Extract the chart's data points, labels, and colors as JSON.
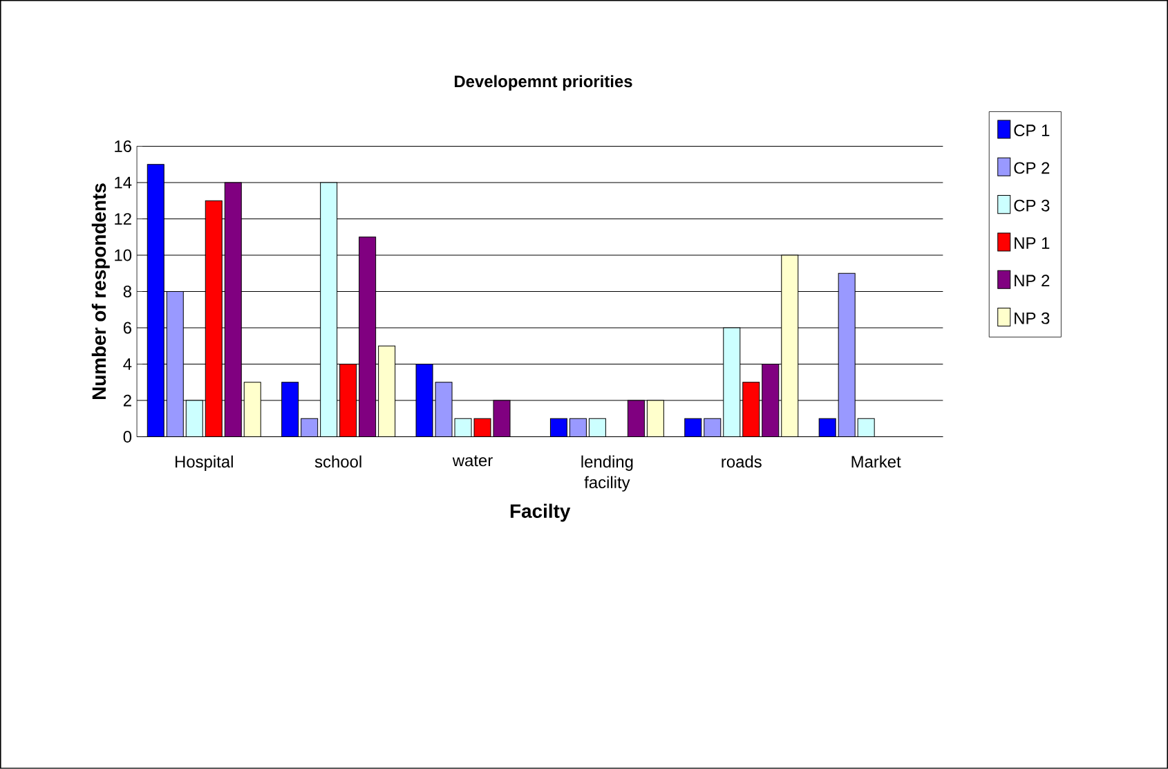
{
  "chart_data": {
    "type": "bar",
    "title": "Developemnt priorities",
    "xlabel": "Facilty",
    "ylabel": "Number of respondents",
    "categories": [
      "Hospital",
      "school",
      "water",
      "lending facility",
      "roads",
      "Market"
    ],
    "series": [
      {
        "name": "CP 1",
        "color": "#0000ff",
        "values": [
          15,
          3,
          4,
          1,
          1,
          1
        ]
      },
      {
        "name": "CP 2",
        "color": "#9999ff",
        "values": [
          8,
          1,
          3,
          1,
          1,
          9
        ]
      },
      {
        "name": "CP 3",
        "color": "#ccffff",
        "values": [
          2,
          14,
          1,
          1,
          6,
          1
        ]
      },
      {
        "name": "NP 1",
        "color": "#ff0000",
        "values": [
          13,
          4,
          1,
          null,
          3,
          null
        ]
      },
      {
        "name": "NP 2",
        "color": "#800080",
        "values": [
          14,
          11,
          2,
          2,
          4,
          null
        ]
      },
      {
        "name": "NP 3",
        "color": "#ffffcc",
        "values": [
          3,
          5,
          null,
          2,
          10,
          null
        ]
      }
    ],
    "ylim": [
      0,
      16
    ],
    "yticks": [
      0,
      2,
      4,
      6,
      8,
      10,
      12,
      14,
      16
    ],
    "grid": "y",
    "legend": "right"
  }
}
